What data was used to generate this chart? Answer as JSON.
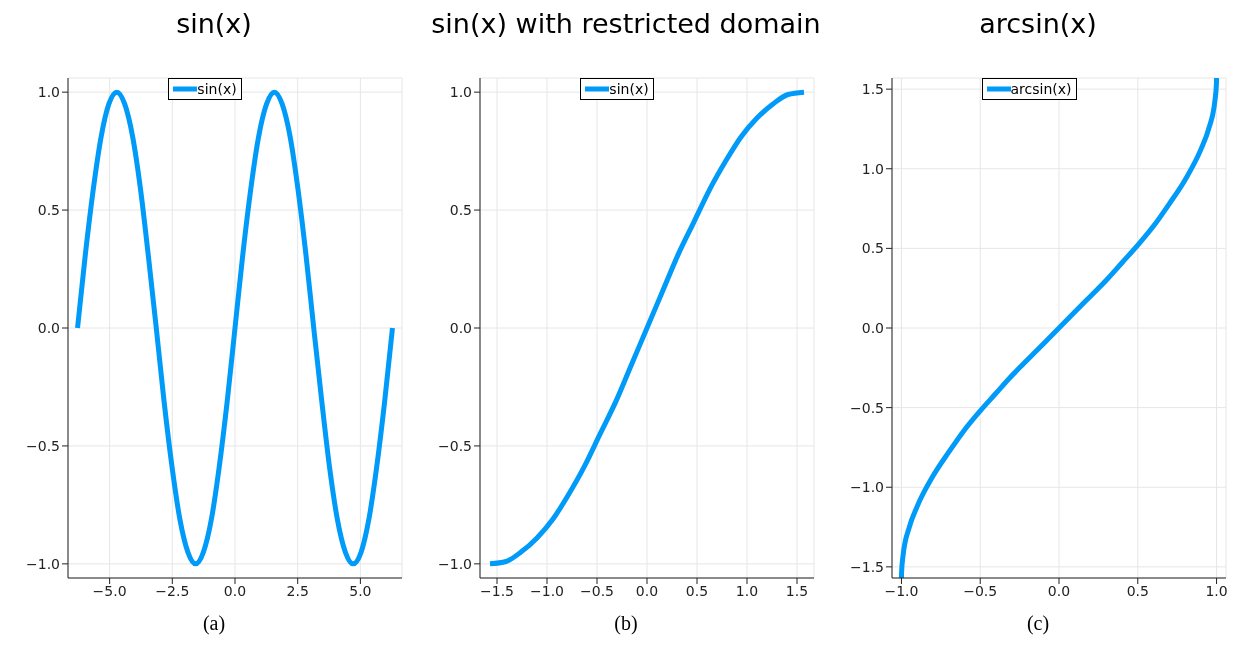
{
  "chart_data": [
    {
      "type": "line",
      "title": "sin(x)",
      "annotations": [
        "(a)"
      ],
      "grid": true,
      "legend": "top",
      "xlim": [
        -6.66,
        6.66
      ],
      "ylim": [
        -1.06,
        1.06
      ],
      "xticks": [
        {
          "value": -5,
          "label": "−5.0"
        },
        {
          "value": -2.5,
          "label": "−2.5"
        },
        {
          "value": 0,
          "label": "0.0"
        },
        {
          "value": 2.5,
          "label": "2.5"
        },
        {
          "value": 5,
          "label": "5.0"
        }
      ],
      "yticks": [
        {
          "value": -1,
          "label": "−1.0"
        },
        {
          "value": -0.5,
          "label": "−0.5"
        },
        {
          "value": 0,
          "label": "0.0"
        },
        {
          "value": 0.5,
          "label": "0.5"
        },
        {
          "value": 1,
          "label": "1.0"
        }
      ],
      "series": [
        {
          "name": "sin(x)",
          "color": "#009af9",
          "x": [
            -6.28,
            -5.97,
            -5.65,
            -5.34,
            -5.03,
            -4.71,
            -4.4,
            -4.08,
            -3.77,
            -3.46,
            -3.14,
            -2.83,
            -2.51,
            -2.2,
            -1.88,
            -1.57,
            -1.26,
            -0.94,
            -0.63,
            -0.31,
            0,
            0.31,
            0.63,
            0.94,
            1.26,
            1.57,
            1.88,
            2.2,
            2.51,
            2.83,
            3.14,
            3.46,
            3.77,
            4.08,
            4.4,
            4.71,
            5.03,
            5.34,
            5.65,
            5.97,
            6.28
          ],
          "values": [
            0,
            0.31,
            0.59,
            0.81,
            0.95,
            1,
            0.95,
            0.81,
            0.59,
            0.31,
            0,
            -0.31,
            -0.59,
            -0.81,
            -0.95,
            -1,
            -0.95,
            -0.81,
            -0.59,
            -0.31,
            0,
            0.31,
            0.59,
            0.81,
            0.95,
            1,
            0.95,
            0.81,
            0.59,
            0.31,
            0,
            -0.31,
            -0.59,
            -0.81,
            -0.95,
            -1,
            -0.95,
            -0.81,
            -0.59,
            -0.31,
            0
          ]
        }
      ]
    },
    {
      "type": "line",
      "title": "sin(x) with restricted domain",
      "annotations": [
        "(b)"
      ],
      "grid": true,
      "legend": "top",
      "xlim": [
        -1.67,
        1.67
      ],
      "ylim": [
        -1.06,
        1.06
      ],
      "xticks": [
        {
          "value": -1.5,
          "label": "−1.5"
        },
        {
          "value": -1,
          "label": "−1.0"
        },
        {
          "value": -0.5,
          "label": "−0.5"
        },
        {
          "value": 0,
          "label": "0.0"
        },
        {
          "value": 0.5,
          "label": "0.5"
        },
        {
          "value": 1,
          "label": "1.0"
        },
        {
          "value": 1.5,
          "label": "1.5"
        }
      ],
      "yticks": [
        {
          "value": -1,
          "label": "−1.0"
        },
        {
          "value": -0.5,
          "label": "−0.5"
        },
        {
          "value": 0,
          "label": "0.0"
        },
        {
          "value": 0.5,
          "label": "0.5"
        },
        {
          "value": 1,
          "label": "1.0"
        }
      ],
      "series": [
        {
          "name": "sin(x)",
          "color": "#009af9",
          "x": [
            -1.57,
            -1.41,
            -1.26,
            -1.1,
            -0.94,
            -0.79,
            -0.63,
            -0.47,
            -0.31,
            -0.16,
            0,
            0.16,
            0.31,
            0.47,
            0.63,
            0.79,
            0.94,
            1.1,
            1.26,
            1.41,
            1.57
          ],
          "values": [
            -1,
            -0.99,
            -0.95,
            -0.89,
            -0.81,
            -0.71,
            -0.59,
            -0.45,
            -0.31,
            -0.16,
            0,
            0.16,
            0.31,
            0.45,
            0.59,
            0.71,
            0.81,
            0.89,
            0.95,
            0.99,
            1
          ]
        }
      ]
    },
    {
      "type": "line",
      "title": "arcsin(x)",
      "annotations": [
        "(c)"
      ],
      "grid": true,
      "legend": "top",
      "xlim": [
        -1.06,
        1.06
      ],
      "ylim": [
        -1.57,
        1.57
      ],
      "xticks": [
        {
          "value": -1,
          "label": "−1.0"
        },
        {
          "value": -0.5,
          "label": "−0.5"
        },
        {
          "value": 0,
          "label": "0.0"
        },
        {
          "value": 0.5,
          "label": "0.5"
        },
        {
          "value": 1,
          "label": "1.0"
        }
      ],
      "yticks": [
        {
          "value": -1.5,
          "label": "−1.5"
        },
        {
          "value": -1,
          "label": "−1.0"
        },
        {
          "value": -0.5,
          "label": "−0.5"
        },
        {
          "value": 0,
          "label": "0.0"
        },
        {
          "value": 0.5,
          "label": "0.5"
        },
        {
          "value": 1,
          "label": "1.0"
        },
        {
          "value": 1.5,
          "label": "1.5"
        }
      ],
      "series": [
        {
          "name": "arcsin(x)",
          "color": "#009af9",
          "x": [
            -1,
            -0.999,
            -0.99,
            -0.95,
            -0.9,
            -0.8,
            -0.7,
            -0.6,
            -0.5,
            -0.4,
            -0.3,
            -0.2,
            -0.1,
            0,
            0.1,
            0.2,
            0.3,
            0.4,
            0.5,
            0.6,
            0.7,
            0.8,
            0.9,
            0.95,
            0.99,
            0.999,
            1
          ],
          "values": [
            -1.57,
            -1.53,
            -1.43,
            -1.25,
            -1.12,
            -0.93,
            -0.78,
            -0.64,
            -0.52,
            -0.41,
            -0.3,
            -0.2,
            -0.1,
            0,
            0.1,
            0.2,
            0.3,
            0.41,
            0.52,
            0.64,
            0.78,
            0.93,
            1.12,
            1.25,
            1.43,
            1.53,
            1.57
          ]
        }
      ]
    }
  ]
}
